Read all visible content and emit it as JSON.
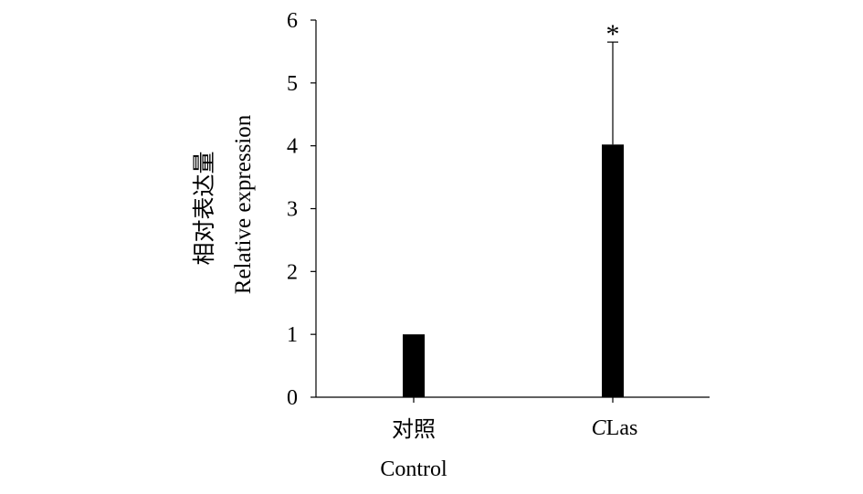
{
  "chart_data": {
    "type": "bar",
    "categories": [
      {
        "line1": "对照",
        "line2": "Control"
      },
      {
        "prefix": "C",
        "suffix": "Las"
      }
    ],
    "series": [
      {
        "values": [
          1.0,
          4.02
        ],
        "error_upper": [
          0,
          1.63
        ]
      }
    ],
    "ylabel_line1": "相对表达量",
    "ylabel_line2": "Relative expression",
    "ylim": [
      0,
      6
    ],
    "yticks": [
      0,
      1,
      2,
      3,
      4,
      5,
      6
    ],
    "annotations": [
      {
        "category_index": 1,
        "text": "*"
      }
    ],
    "grid": false,
    "legend": "none",
    "bar_color": "#000000"
  }
}
